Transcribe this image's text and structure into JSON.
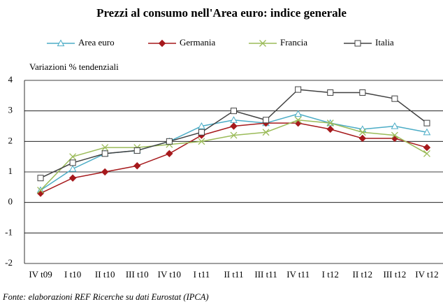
{
  "chart_data": {
    "type": "line",
    "title": "Prezzi al consumo nell'Area euro: indice generale",
    "ylabel": "Variazioni % tendenziali",
    "note": "Fonte: elaborazioni REF Ricerche su dati Eurostat (IPCA)",
    "categories": [
      "IV t09",
      "I t10",
      "II t10",
      "III t10",
      "IV t10",
      "I t11",
      "II t11",
      "III t11",
      "IV t11",
      "I t12",
      "II t12",
      "III t12",
      "IV t12"
    ],
    "series": [
      {
        "name": "Area euro",
        "color": "#4bacc6",
        "marker": "triangle",
        "values": [
          0.4,
          1.1,
          1.6,
          1.7,
          2.0,
          2.5,
          2.7,
          2.6,
          2.9,
          2.6,
          2.4,
          2.5,
          2.3
        ]
      },
      {
        "name": "Germania",
        "color": "#a6191c",
        "marker": "diamond",
        "values": [
          0.3,
          0.8,
          1.0,
          1.2,
          1.6,
          2.2,
          2.5,
          2.6,
          2.6,
          2.4,
          2.1,
          2.1,
          1.8
        ]
      },
      {
        "name": "Francia",
        "color": "#9bbb59",
        "marker": "cross",
        "values": [
          0.4,
          1.5,
          1.8,
          1.8,
          1.9,
          2.0,
          2.2,
          2.3,
          2.7,
          2.6,
          2.3,
          2.2,
          1.6
        ]
      },
      {
        "name": "Italia",
        "color": "#404040",
        "marker": "square",
        "values": [
          0.8,
          1.3,
          1.6,
          1.7,
          2.0,
          2.3,
          3.0,
          2.7,
          3.7,
          3.6,
          3.6,
          3.4,
          2.6
        ]
      }
    ],
    "ylim": [
      -2,
      4
    ],
    "yticks": [
      -2,
      -1,
      0,
      1,
      2,
      3,
      4
    ],
    "grid": true,
    "legend": "top"
  }
}
